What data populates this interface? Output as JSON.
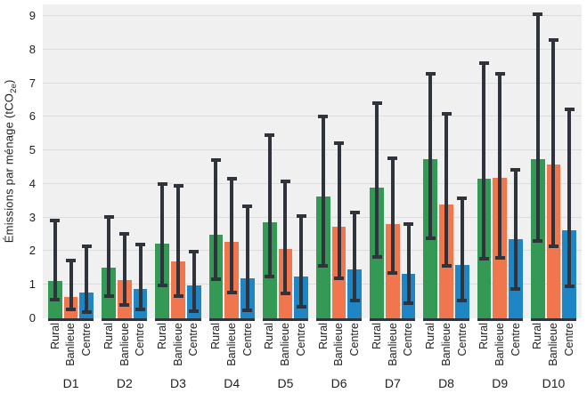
{
  "chart_data": {
    "type": "bar",
    "title": "",
    "ylabel_prefix": "Émissions par ménage (tCO",
    "ylabel_sub": "2e",
    "ylabel_suffix": ")",
    "ylabel_plain": "Émissions par ménage (tCO2e)",
    "xlabel": "",
    "ylim": [
      0,
      9.4
    ],
    "yticks": [
      0,
      1,
      2,
      3,
      4,
      5,
      6,
      7,
      8,
      9
    ],
    "grid": true,
    "legend": "none (labels under each bar)",
    "categories": [
      "D1",
      "D2",
      "D3",
      "D4",
      "D5",
      "D6",
      "D7",
      "D8",
      "D9",
      "D10"
    ],
    "subcategories": [
      "Rural",
      "Banlieue",
      "Centre"
    ],
    "series": [
      {
        "name": "Rural",
        "color": "#339955",
        "values": [
          1.12,
          1.52,
          2.22,
          2.5,
          2.86,
          3.63,
          3.9,
          4.75,
          4.15,
          4.75
        ],
        "err_high": [
          2.97,
          3.08,
          4.05,
          4.76,
          5.5,
          6.07,
          6.45,
          7.33,
          7.65,
          9.1
        ],
        "err_low": [
          0.5,
          0.6,
          0.92,
          1.12,
          1.18,
          1.5,
          1.77,
          2.33,
          1.73,
          2.25
        ]
      },
      {
        "name": "Banlieue",
        "color": "#f0764e",
        "values": [
          0.63,
          1.15,
          1.7,
          2.27,
          2.07,
          2.73,
          2.8,
          3.4,
          4.18,
          4.57
        ],
        "err_high": [
          1.78,
          2.57,
          4.0,
          4.2,
          4.13,
          5.27,
          4.83,
          6.15,
          7.32,
          8.35
        ],
        "err_low": [
          0.2,
          0.35,
          0.6,
          0.72,
          0.7,
          1.15,
          1.3,
          1.5,
          1.75,
          2.08
        ]
      },
      {
        "name": "Centre",
        "color": "#1f86c6",
        "values": [
          0.78,
          0.87,
          0.97,
          1.2,
          1.25,
          1.45,
          1.32,
          1.58,
          2.35,
          2.63
        ],
        "err_high": [
          2.2,
          2.25,
          2.05,
          3.38,
          3.1,
          3.2,
          2.87,
          3.63,
          4.47,
          6.27
        ],
        "err_low": [
          0.12,
          0.2,
          0.15,
          0.18,
          0.28,
          0.48,
          0.4,
          0.47,
          0.83,
          0.9
        ]
      }
    ],
    "error_bar_color": "#2f343c",
    "plot_bg_color": "#f0f0f1",
    "gridline_color": "#dcdcdc"
  }
}
